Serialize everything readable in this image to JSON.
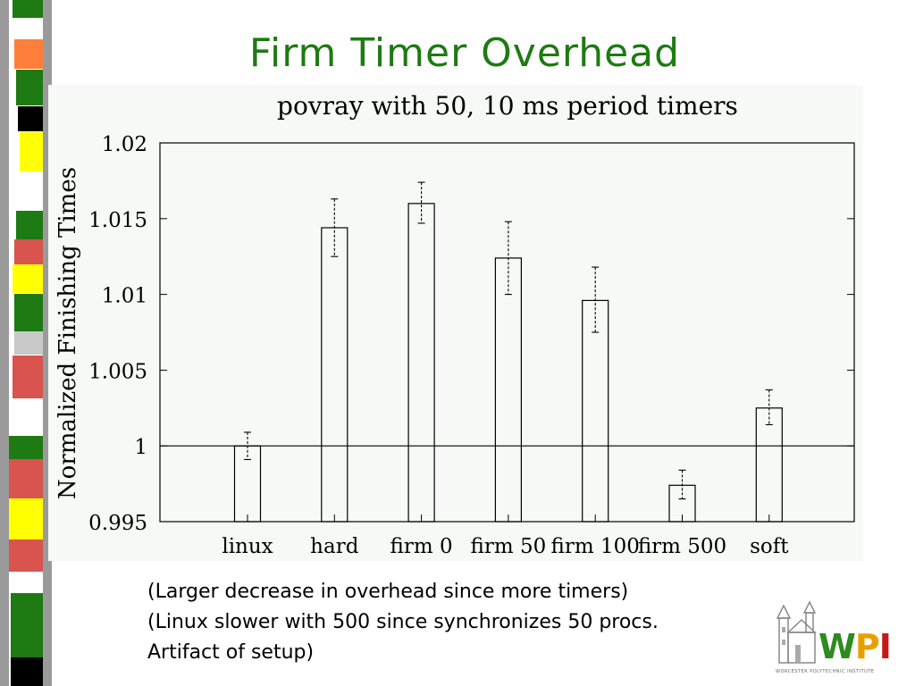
{
  "slide": {
    "title": "Firm Timer Overhead",
    "notes": [
      "(Larger decrease in overhead since more timers)",
      "(Linux slower with 500 since synchronizes 50 procs.",
      "Artifact of setup)"
    ]
  },
  "logo": {
    "letters": [
      "W",
      "P",
      "I"
    ],
    "caption": "WORCESTER POLYTECHNIC INSTITUTE"
  },
  "chart_data": {
    "type": "bar",
    "title": "povray with 50, 10 ms period timers",
    "xlabel": "",
    "ylabel": "Normalized Finishing Times",
    "ylim": [
      0.995,
      1.02
    ],
    "yticks": [
      0.995,
      1,
      1.005,
      1.01,
      1.015,
      1.02
    ],
    "ytick_labels": [
      "0.995",
      "1",
      "1.005",
      "1.01",
      "1.015",
      "1.02"
    ],
    "baseline": 1,
    "grid": false,
    "categories": [
      "linux",
      "hard",
      "firm 0",
      "firm 50",
      "firm 100",
      "firm 500",
      "soft"
    ],
    "values": [
      1.0,
      1.0144,
      1.016,
      1.0124,
      1.0096,
      0.9974,
      1.0025
    ],
    "error_low": [
      0.9991,
      1.0125,
      1.0147,
      1.01,
      1.0075,
      0.9965,
      1.0014
    ],
    "error_high": [
      1.0009,
      1.0163,
      1.0174,
      1.0148,
      1.0118,
      0.9984,
      1.0037
    ]
  },
  "colors": {
    "title": "#1e7a12",
    "panel_bg": "#f7f9f7",
    "strip_gray": "#9a9a9a",
    "strip_colors": [
      "#1e7a12",
      "#ff7f3a",
      "#000000",
      "#ffff00",
      "#d9534f",
      "#c8c8c8"
    ]
  }
}
